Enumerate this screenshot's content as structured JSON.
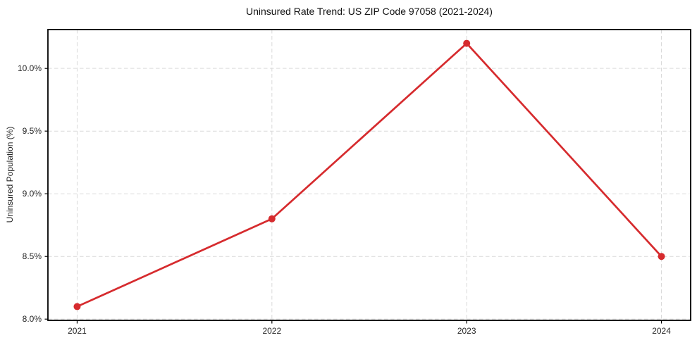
{
  "chart_data": {
    "type": "line",
    "title": "Uninsured Rate Trend: US ZIP Code 97058 (2021-2024)",
    "xlabel": "",
    "ylabel": "Uninsured Population (%)",
    "x": [
      2021,
      2022,
      2023,
      2024
    ],
    "x_tick_labels": [
      "2021",
      "2022",
      "2023",
      "2024"
    ],
    "y_ticks": [
      8.0,
      8.5,
      9.0,
      9.5,
      10.0
    ],
    "y_tick_labels": [
      "8.0%",
      "8.5%",
      "9.0%",
      "9.5%",
      "10.0%"
    ],
    "series": [
      {
        "name": "Uninsured Population (%)",
        "values": [
          8.1,
          8.8,
          10.2,
          8.5
        ],
        "color": "#d62b2e",
        "marker": "circle"
      }
    ],
    "xlim": [
      2020.85,
      2024.15
    ],
    "ylim": [
      7.99,
      10.31
    ],
    "grid": true,
    "grid_style": "dashed",
    "grid_color": "#d9d9d9",
    "spine_color": "#000000",
    "legend": false
  }
}
